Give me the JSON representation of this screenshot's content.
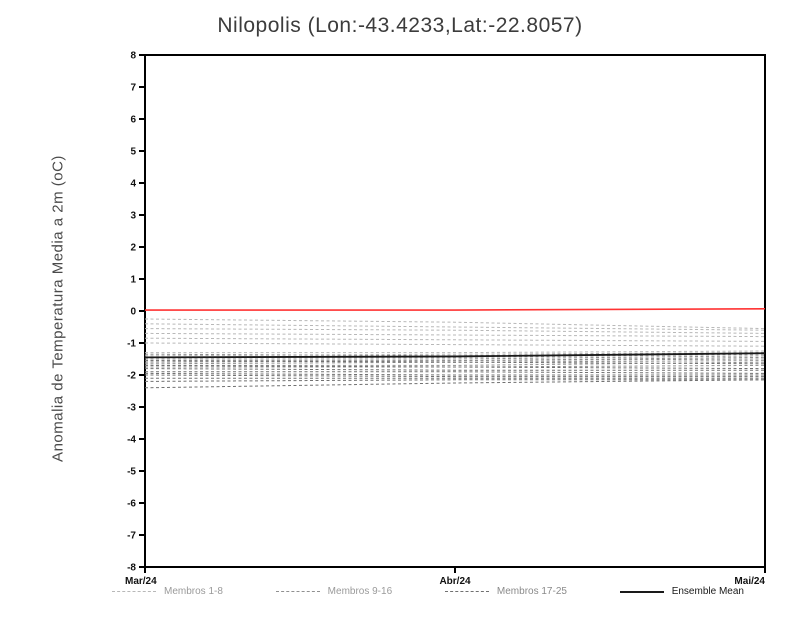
{
  "chart_data": {
    "type": "line",
    "title": "Nilopolis (Lon:-43.4233,Lat:-22.8057)",
    "ylabel": "Anomalia de Temperatura Media a 2m (oC)",
    "xlabel": "",
    "ylim": [
      -8,
      8
    ],
    "y_ticks": [
      "8",
      "7",
      "6",
      "5",
      "4",
      "3",
      "2",
      "1",
      "0",
      "-1",
      "-2",
      "-3",
      "-4",
      "-5",
      "-6",
      "-7",
      "-8"
    ],
    "x_ticks": [
      "Mar/24",
      "Abr/24",
      "Mai/24"
    ],
    "grid": false,
    "legend_position": "bottom",
    "reference_line": {
      "name": "zero-line",
      "values": [
        0.03,
        0.03,
        0.07
      ],
      "color": "#ff3333",
      "style": "solid",
      "width": 1.6
    },
    "series": [
      {
        "name": "Membro 1",
        "group": "Membros 1-8",
        "color": "#b8b8b8",
        "style": "dashed",
        "values": [
          -0.25,
          -0.35,
          -0.55
        ]
      },
      {
        "name": "Membro 2",
        "group": "Membros 1-8",
        "color": "#b8b8b8",
        "style": "dashed",
        "values": [
          -0.4,
          -0.5,
          -0.6
        ]
      },
      {
        "name": "Membro 3",
        "group": "Membros 1-8",
        "color": "#b8b8b8",
        "style": "dashed",
        "values": [
          -0.55,
          -0.6,
          -0.7
        ]
      },
      {
        "name": "Membro 4",
        "group": "Membros 1-8",
        "color": "#b8b8b8",
        "style": "dashed",
        "values": [
          -0.7,
          -0.75,
          -0.8
        ]
      },
      {
        "name": "Membro 5",
        "group": "Membros 1-8",
        "color": "#b8b8b8",
        "style": "dashed",
        "values": [
          -0.85,
          -0.9,
          -0.95
        ]
      },
      {
        "name": "Membro 6",
        "group": "Membros 1-8",
        "color": "#b8b8b8",
        "style": "dashed",
        "values": [
          -1.0,
          -1.05,
          -1.1
        ]
      },
      {
        "name": "Membro 7",
        "group": "Membros 1-8",
        "color": "#b8b8b8",
        "style": "dashed",
        "values": [
          -1.3,
          -1.3,
          -1.25
        ]
      },
      {
        "name": "Membro 8",
        "group": "Membros 1-8",
        "color": "#b8b8b8",
        "style": "dashed",
        "values": [
          -1.4,
          -1.35,
          -1.3
        ]
      },
      {
        "name": "Membro 9",
        "group": "Membros 9-16",
        "color": "#909090",
        "style": "dashed",
        "values": [
          -1.35,
          -1.4,
          -1.3
        ]
      },
      {
        "name": "Membro 10",
        "group": "Membros 9-16",
        "color": "#909090",
        "style": "dashed",
        "values": [
          -1.45,
          -1.45,
          -1.35
        ]
      },
      {
        "name": "Membro 11",
        "group": "Membros 9-16",
        "color": "#909090",
        "style": "dashed",
        "values": [
          -1.5,
          -1.5,
          -1.4
        ]
      },
      {
        "name": "Membro 12",
        "group": "Membros 9-16",
        "color": "#909090",
        "style": "dashed",
        "values": [
          -1.55,
          -1.55,
          -1.45
        ]
      },
      {
        "name": "Membro 13",
        "group": "Membros 9-16",
        "color": "#909090",
        "style": "dashed",
        "values": [
          -1.6,
          -1.55,
          -1.5
        ]
      },
      {
        "name": "Membro 14",
        "group": "Membros 9-16",
        "color": "#909090",
        "style": "dashed",
        "values": [
          -1.65,
          -1.6,
          -1.55
        ]
      },
      {
        "name": "Membro 15",
        "group": "Membros 9-16",
        "color": "#909090",
        "style": "dashed",
        "values": [
          -1.7,
          -1.7,
          -1.6
        ]
      },
      {
        "name": "Membro 16",
        "group": "Membros 9-16",
        "color": "#909090",
        "style": "dashed",
        "values": [
          -1.75,
          -1.75,
          -1.7
        ]
      },
      {
        "name": "Membro 17",
        "group": "Membros 17-25",
        "color": "#707070",
        "style": "dashed",
        "values": [
          -1.55,
          -1.6,
          -1.65
        ]
      },
      {
        "name": "Membro 18",
        "group": "Membros 17-25",
        "color": "#707070",
        "style": "dashed",
        "values": [
          -1.7,
          -1.75,
          -1.8
        ]
      },
      {
        "name": "Membro 19",
        "group": "Membros 17-25",
        "color": "#707070",
        "style": "dashed",
        "values": [
          -1.8,
          -1.85,
          -1.85
        ]
      },
      {
        "name": "Membro 20",
        "group": "Membros 17-25",
        "color": "#707070",
        "style": "dashed",
        "values": [
          -1.9,
          -1.9,
          -1.95
        ]
      },
      {
        "name": "Membro 21",
        "group": "Membros 17-25",
        "color": "#707070",
        "style": "dashed",
        "values": [
          -1.95,
          -2.0,
          -2.0
        ]
      },
      {
        "name": "Membro 22",
        "group": "Membros 17-25",
        "color": "#707070",
        "style": "dashed",
        "values": [
          -2.0,
          -2.05,
          -2.05
        ]
      },
      {
        "name": "Membro 23",
        "group": "Membros 17-25",
        "color": "#707070",
        "style": "dashed",
        "values": [
          -2.1,
          -2.1,
          -2.1
        ]
      },
      {
        "name": "Membro 24",
        "group": "Membros 17-25",
        "color": "#707070",
        "style": "dashed",
        "values": [
          -2.2,
          -2.15,
          -2.15
        ]
      },
      {
        "name": "Membro 25",
        "group": "Membros 17-25",
        "color": "#707070",
        "style": "dashed",
        "values": [
          -2.4,
          -2.25,
          -2.15
        ]
      },
      {
        "name": "Ensemble Mean",
        "group": "Ensemble Mean",
        "color": "#1a1a1a",
        "style": "solid",
        "width": 1.8,
        "values": [
          -1.45,
          -1.42,
          -1.32
        ]
      }
    ],
    "legend": [
      {
        "label": "Membros 1-8",
        "style": "dashed",
        "color": "#b8b8b8",
        "text_color": "#9a9a9a"
      },
      {
        "label": "Membros 9-16",
        "style": "dashed",
        "color": "#909090",
        "text_color": "#9a9a9a"
      },
      {
        "label": "Membros 17-25",
        "style": "dashed",
        "color": "#707070",
        "text_color": "#8a8a8a"
      },
      {
        "label": "Ensemble Mean",
        "style": "solid",
        "color": "#1a1a1a",
        "text_color": "#1a1a1a"
      }
    ]
  }
}
